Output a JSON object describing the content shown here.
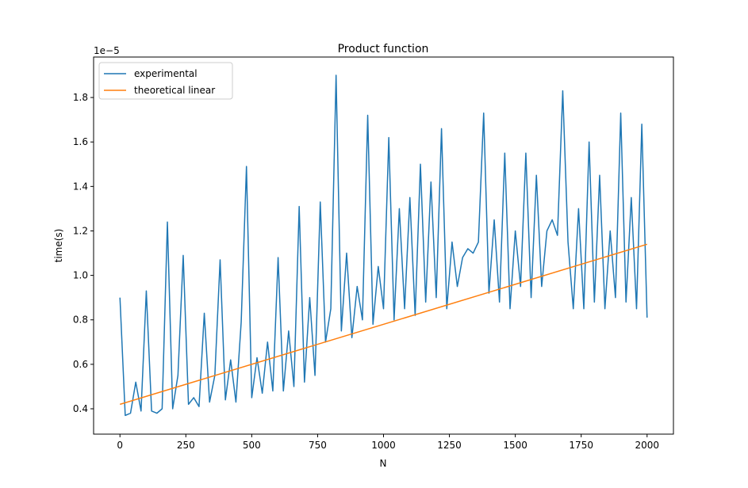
{
  "chart_data": {
    "type": "line",
    "title": "Product function",
    "xlabel": "N",
    "ylabel": "time(s)",
    "y_offset_label": "1e−5",
    "xlim": [
      -100,
      2100
    ],
    "ylim": [
      0.286,
      1.982
    ],
    "xticks": [
      0,
      250,
      500,
      750,
      1000,
      1250,
      1500,
      1750,
      2000
    ],
    "yticks": [
      0.4,
      0.6,
      0.8,
      {
        "value": 1,
        "label": "1.0"
      },
      1.2,
      1.4,
      1.6,
      1.8
    ],
    "legend": "upper left",
    "grid": false,
    "series": [
      {
        "name": "experimental",
        "color": "#1f77b4",
        "x": [
          0,
          20,
          40,
          60,
          80,
          100,
          120,
          140,
          160,
          180,
          200,
          220,
          240,
          260,
          280,
          300,
          320,
          340,
          360,
          380,
          400,
          420,
          440,
          460,
          480,
          500,
          520,
          540,
          560,
          580,
          600,
          620,
          640,
          660,
          680,
          700,
          720,
          740,
          760,
          780,
          800,
          820,
          840,
          860,
          880,
          900,
          920,
          940,
          960,
          980,
          1000,
          1020,
          1040,
          1060,
          1080,
          1100,
          1120,
          1140,
          1160,
          1180,
          1200,
          1220,
          1240,
          1260,
          1280,
          1300,
          1320,
          1340,
          1360,
          1380,
          1400,
          1420,
          1440,
          1460,
          1480,
          1500,
          1520,
          1540,
          1560,
          1580,
          1600,
          1620,
          1640,
          1660,
          1680,
          1700,
          1720,
          1740,
          1760,
          1780,
          1800,
          1820,
          1840,
          1860,
          1880,
          1900,
          1920,
          1940,
          1960,
          1980,
          2000
        ],
        "values": [
          0.9,
          0.37,
          0.38,
          0.52,
          0.39,
          0.93,
          0.39,
          0.38,
          0.4,
          1.24,
          0.4,
          0.55,
          1.09,
          0.42,
          0.45,
          0.41,
          0.83,
          0.43,
          0.55,
          1.07,
          0.44,
          0.62,
          0.43,
          0.79,
          1.49,
          0.45,
          0.63,
          0.47,
          0.7,
          0.48,
          1.08,
          0.48,
          0.75,
          0.5,
          1.31,
          0.52,
          0.9,
          0.55,
          1.33,
          0.7,
          0.85,
          1.9,
          0.75,
          1.1,
          0.72,
          0.95,
          0.8,
          1.72,
          0.78,
          1.04,
          0.85,
          1.62,
          0.8,
          1.3,
          0.85,
          1.35,
          0.82,
          1.5,
          0.88,
          1.42,
          0.9,
          1.66,
          0.85,
          1.15,
          0.95,
          1.08,
          1.12,
          1.1,
          1.15,
          1.73,
          0.92,
          1.25,
          0.88,
          1.55,
          0.85,
          1.2,
          0.95,
          1.55,
          0.9,
          1.45,
          0.95,
          1.2,
          1.25,
          1.18,
          1.83,
          1.15,
          0.85,
          1.3,
          0.85,
          1.6,
          0.88,
          1.45,
          0.85,
          1.2,
          0.9,
          1.73,
          0.88,
          1.35,
          0.85,
          1.68,
          0.81
        ]
      },
      {
        "name": "theoretical linear",
        "color": "#ff7f0e",
        "x": [
          0,
          2000
        ],
        "values": [
          0.42,
          1.14
        ]
      }
    ]
  }
}
